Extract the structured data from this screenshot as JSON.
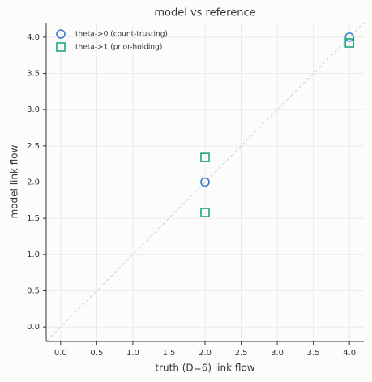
{
  "chart_data": {
    "type": "scatter",
    "title": "model vs reference",
    "x_label": "truth (D=6) link flow",
    "y_label": "model link flow",
    "xlim": [
      -0.2,
      4.2
    ],
    "ylim": [
      -0.2,
      4.2
    ],
    "xticks": [
      {
        "value": 0,
        "label": "0.0"
      },
      0.5,
      {
        "value": 1,
        "label": "1.0"
      },
      1.5,
      {
        "value": 2,
        "label": "2.0"
      },
      2.5,
      {
        "value": 3,
        "label": "3.0"
      },
      3.5,
      {
        "value": 4,
        "label": "4.0"
      }
    ],
    "yticks": [
      {
        "value": 0,
        "label": "0.0"
      },
      0.5,
      {
        "value": 1,
        "label": "1.0"
      },
      1.5,
      {
        "value": 2,
        "label": "2.0"
      },
      2.5,
      {
        "value": 3,
        "label": "3.0"
      },
      3.5,
      {
        "value": 4,
        "label": "4.0"
      }
    ],
    "grid": true,
    "reference_line": true,
    "legend": "upper left",
    "series": [
      {
        "name": "theta->0 (count-trusting)",
        "color": "#3a7fd0",
        "marker": "circle",
        "x": [
          2,
          2,
          4
        ],
        "y": [
          2,
          2,
          4
        ]
      },
      {
        "name": "theta->1 (prior-holding)",
        "color": "#1fa67a",
        "marker": "square",
        "x": [
          2,
          2,
          4
        ],
        "y": [
          2.34,
          1.58,
          3.92
        ]
      }
    ]
  }
}
